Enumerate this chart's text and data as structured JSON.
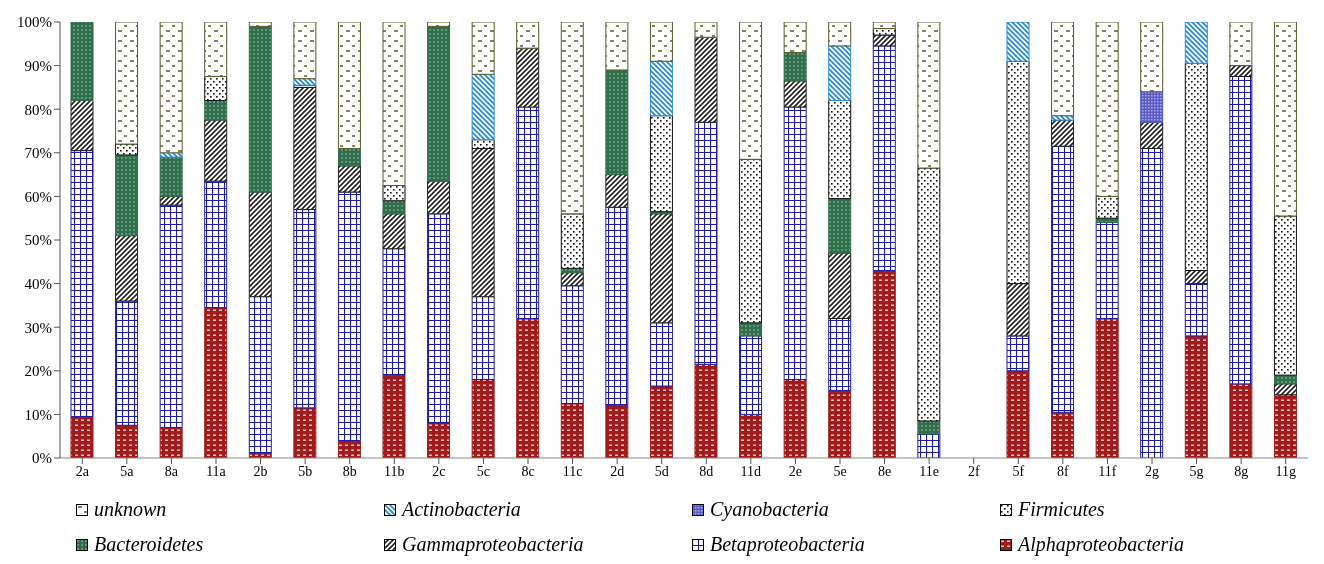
{
  "chart_data": {
    "type": "bar",
    "stacked": true,
    "categories": [
      "2a",
      "5a",
      "8a",
      "11a",
      "2b",
      "5b",
      "8b",
      "11b",
      "2c",
      "5c",
      "8c",
      "11c",
      "2d",
      "5d",
      "8d",
      "11d",
      "2e",
      "5e",
      "8e",
      "11e",
      "2f",
      "5f",
      "8f",
      "11f",
      "2g",
      "5g",
      "8g",
      "11g"
    ],
    "series": [
      {
        "name": "Alphaproteobacteria",
        "color": "#a01c1c",
        "values": [
          9.5,
          7.5,
          7,
          34.5,
          1,
          11.5,
          4,
          19,
          8,
          18,
          32,
          12.5,
          12,
          16.5,
          21.5,
          10,
          18,
          15.5,
          43,
          0,
          0,
          20,
          10.5,
          32,
          0,
          28,
          17,
          14.5
        ]
      },
      {
        "name": "Betaproteobacteria",
        "color": "#1c1ca8",
        "values": [
          61,
          28.5,
          51,
          29,
          36,
          45.5,
          57,
          29,
          48,
          19,
          48.5,
          27,
          45.5,
          14.5,
          55.5,
          18,
          62.5,
          16.5,
          51.5,
          5.5,
          0,
          8,
          61,
          22,
          71,
          12,
          70.5,
          0
        ]
      },
      {
        "name": "Gammaproteobacteria",
        "color": "#222222",
        "values": [
          11.5,
          15,
          2,
          14,
          24,
          28,
          6,
          8,
          7.5,
          34,
          13.5,
          3,
          7.5,
          25,
          19.5,
          0,
          6,
          15,
          2.5,
          0,
          0,
          12,
          6,
          0,
          6,
          3,
          2.5,
          2.5
        ]
      },
      {
        "name": "Bacteroidetes",
        "color": "#2f6e4a",
        "values": [
          18,
          18.5,
          9,
          4.5,
          38,
          0,
          4,
          3,
          35.5,
          0,
          0,
          1,
          24,
          0.5,
          0,
          3,
          6.5,
          12.5,
          0,
          3,
          0,
          0,
          0,
          1,
          0,
          0,
          0,
          2
        ]
      },
      {
        "name": "Firmicutes",
        "color": "#111111",
        "values": [
          0,
          2.5,
          0,
          5.5,
          0,
          0.5,
          0,
          3.5,
          0,
          2,
          0,
          12.5,
          0,
          22,
          0,
          37.5,
          0,
          22.5,
          1.5,
          58,
          0,
          51,
          0,
          5,
          0,
          47.5,
          0,
          36.5
        ]
      },
      {
        "name": "Cyanobacteria",
        "color": "#5a5ac8",
        "values": [
          0,
          0,
          0,
          0,
          0,
          0,
          0,
          0,
          0,
          0,
          0,
          0,
          0,
          0,
          0,
          0,
          0,
          0,
          0,
          0,
          0,
          0,
          0,
          0,
          7,
          0,
          0,
          0
        ]
      },
      {
        "name": "Actinobacteria",
        "color": "#2a8ae0",
        "values": [
          0,
          0,
          1,
          0,
          0,
          1.5,
          0,
          0,
          0,
          15,
          0,
          0,
          0,
          12.5,
          0,
          0,
          0,
          12.5,
          0,
          0,
          0,
          9,
          1,
          0,
          0,
          9.5,
          0,
          0
        ]
      },
      {
        "name": "unknown",
        "color": "#5a5a2a",
        "values": [
          0,
          28,
          30,
          12.5,
          1,
          13,
          29,
          37.5,
          1,
          12,
          6,
          44,
          11,
          9,
          3.5,
          31.5,
          7,
          5.5,
          1.5,
          33.5,
          0,
          0,
          21.5,
          40,
          16,
          0,
          10,
          44.5
        ]
      }
    ],
    "ylim": [
      0,
      100
    ],
    "yticks": [
      {
        "value": 0,
        "label": "0%"
      },
      {
        "value": 10,
        "label": "10%"
      },
      {
        "value": 20,
        "label": "20%"
      },
      {
        "value": 30,
        "label": "30%"
      },
      {
        "value": 40,
        "label": "40%"
      },
      {
        "value": 50,
        "label": "50%"
      },
      {
        "value": 60,
        "label": "60%"
      },
      {
        "value": 70,
        "label": "70%"
      },
      {
        "value": 80,
        "label": "80%"
      },
      {
        "value": 90,
        "label": "90%"
      },
      {
        "value": 100,
        "label": "100%"
      }
    ],
    "grid": false,
    "legend": "bottom"
  }
}
